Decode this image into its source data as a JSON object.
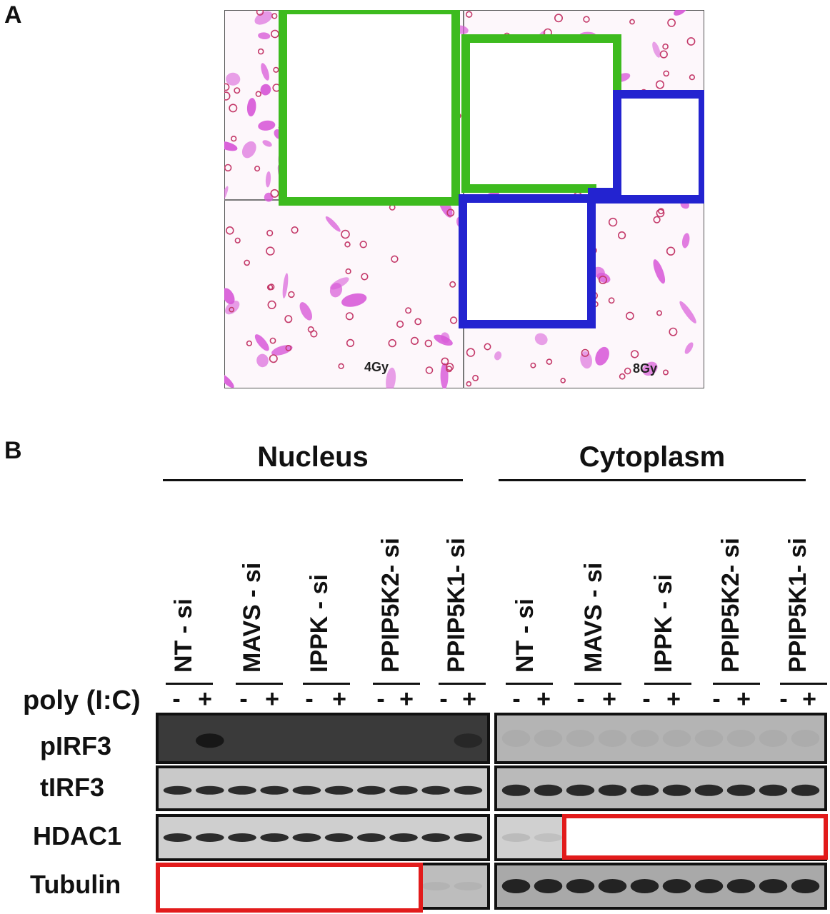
{
  "panel_a": {
    "letter": "A",
    "quadrant_labels": [
      "4Gy",
      "8Gy"
    ]
  },
  "panel_b": {
    "letter": "B",
    "groups": [
      {
        "title": "Nucleus",
        "lanes": [
          "NT - si",
          "MAVS - si",
          "IPPK - si",
          "PPIP5K2- si",
          "PPIP5K1- si"
        ]
      },
      {
        "title": "Cytoplasm",
        "lanes": [
          "NT - si",
          "MAVS - si",
          "IPPK - si",
          "PPIP5K2- si",
          "PPIP5K1- si"
        ]
      }
    ],
    "treatment_label": "poly (I:C)",
    "signs": [
      "-",
      "+"
    ],
    "rows": [
      "pIRF3",
      "tIRF3",
      "HDAC1",
      "Tubulin"
    ]
  },
  "colors": {
    "green_box": "#3dbb1e",
    "blue_box": "#2323d0",
    "red_box": "#e21b1b",
    "stain": "#d85ad8"
  }
}
